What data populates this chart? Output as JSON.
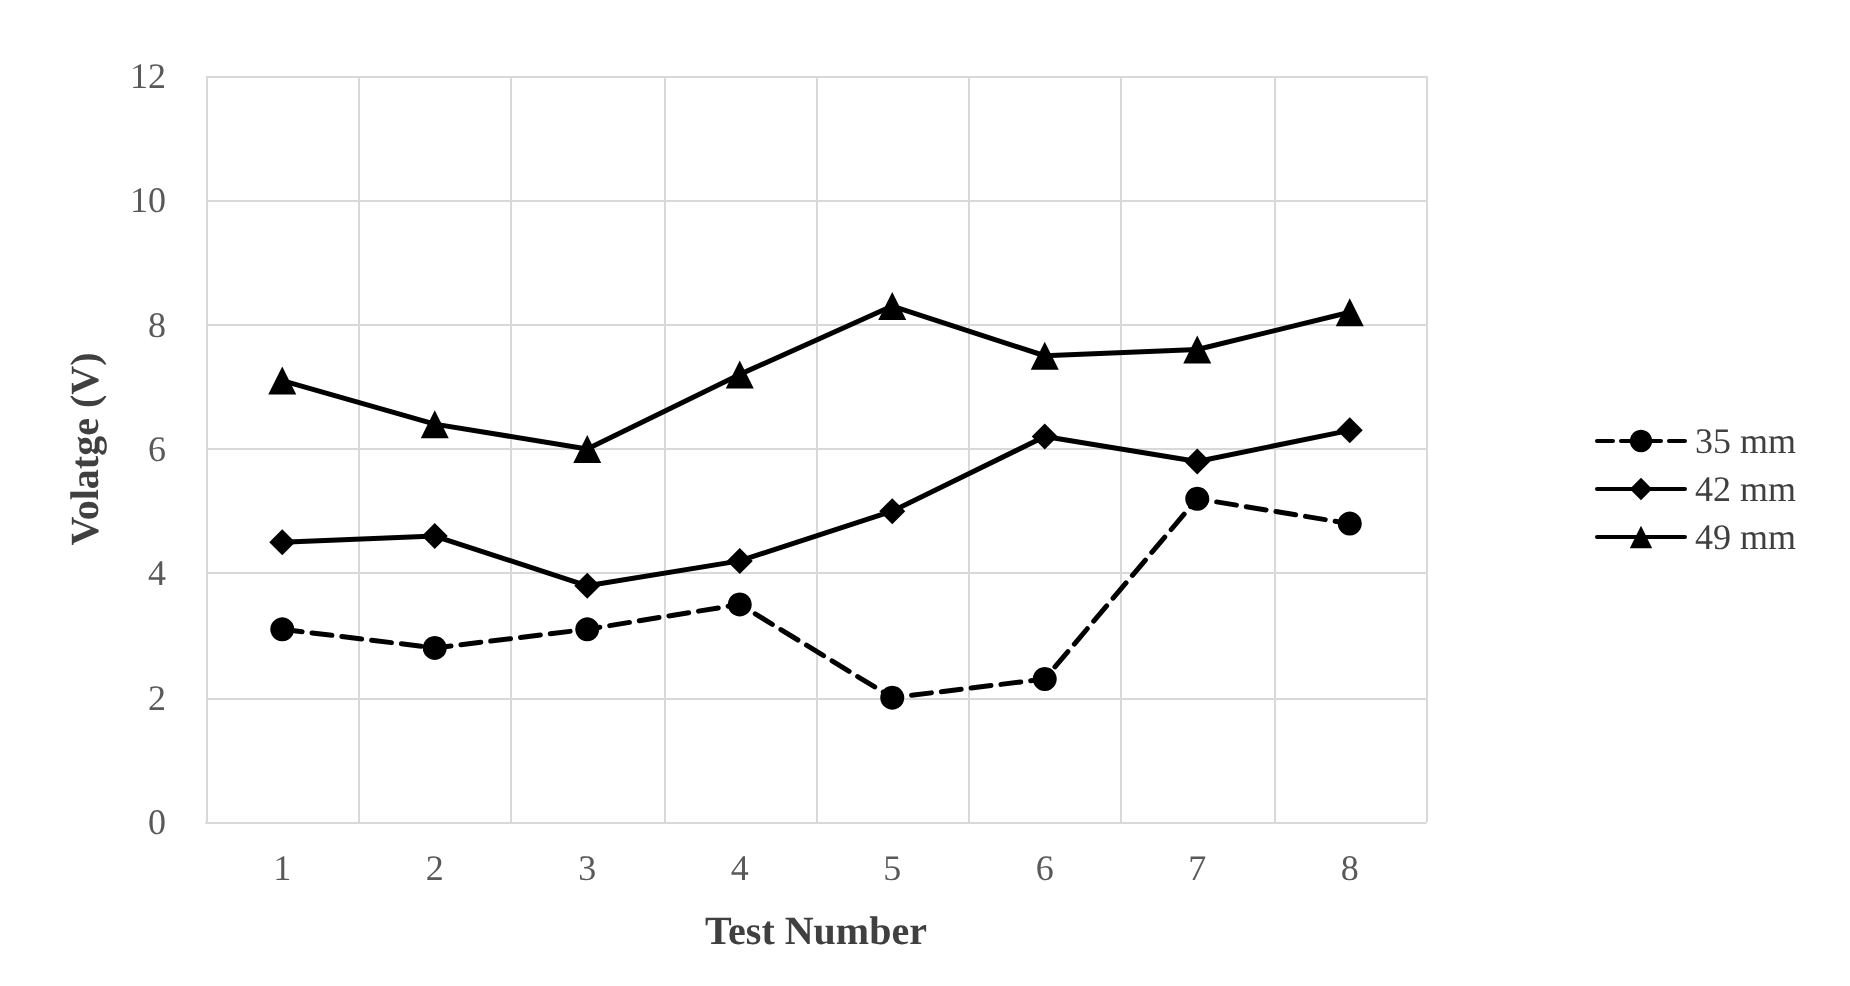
{
  "chart_data": {
    "type": "line",
    "xlabel": "Test Number",
    "ylabel": "Volatge (V)",
    "categories": [
      "1",
      "2",
      "3",
      "4",
      "5",
      "6",
      "7",
      "8"
    ],
    "series": [
      {
        "name": "35 mm",
        "color": "#000000",
        "marker": "circle",
        "line_style": "dashed",
        "values": [
          3.1,
          2.8,
          3.1,
          3.5,
          2.0,
          2.3,
          5.2,
          4.8
        ]
      },
      {
        "name": "42 mm",
        "color": "#000000",
        "marker": "diamond",
        "line_style": "solid",
        "values": [
          4.5,
          4.6,
          3.8,
          4.2,
          5.0,
          6.2,
          5.8,
          6.3
        ]
      },
      {
        "name": "49 mm",
        "color": "#000000",
        "marker": "triangle",
        "line_style": "solid",
        "values": [
          7.1,
          6.4,
          6.0,
          7.2,
          8.3,
          7.5,
          7.6,
          8.2
        ]
      }
    ],
    "ylim": [
      0,
      12
    ],
    "yticks": [
      0,
      2,
      4,
      6,
      8,
      10,
      12
    ],
    "grid": true,
    "legend": "right"
  }
}
